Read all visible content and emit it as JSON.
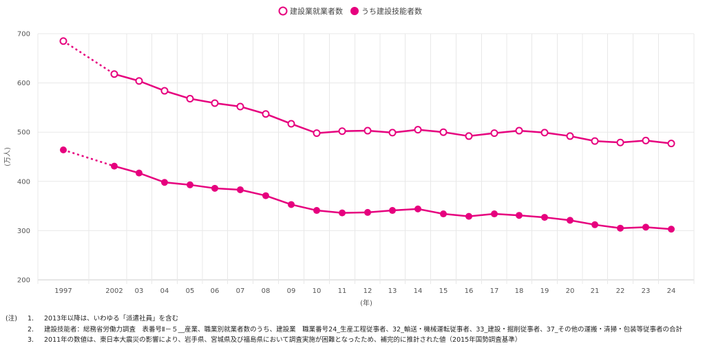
{
  "colors": {
    "series": "#e6007e",
    "grid": "#e8e8e8",
    "axis": "#cccccc"
  },
  "chart_data": {
    "type": "line",
    "title": "",
    "xlabel": "(年)",
    "ylabel": "(万人)",
    "ylim": [
      200,
      700
    ],
    "yticks": [
      700,
      600,
      500,
      400,
      300,
      200
    ],
    "grid": true,
    "legend_position": "top-center",
    "x": [
      "1997",
      "2002",
      "03",
      "04",
      "05",
      "06",
      "07",
      "08",
      "09",
      "10",
      "11",
      "12",
      "13",
      "14",
      "15",
      "16",
      "17",
      "18",
      "19",
      "20",
      "21",
      "22",
      "23",
      "24"
    ],
    "series": [
      {
        "name": "建設業就業者数",
        "marker": "hollow-circle",
        "values": [
          685,
          618,
          604,
          584,
          568,
          559,
          552,
          537,
          517,
          498,
          502,
          503,
          499,
          505,
          500,
          492,
          498,
          503,
          499,
          492,
          482,
          479,
          483,
          477
        ]
      },
      {
        "name": "うち建設技能者数",
        "marker": "filled-circle",
        "values": [
          464,
          431,
          417,
          398,
          393,
          386,
          383,
          371,
          353,
          341,
          336,
          337,
          341,
          344,
          334,
          329,
          334,
          331,
          327,
          321,
          312,
          305,
          307,
          303
        ]
      }
    ]
  },
  "notes": {
    "lead": "(注)",
    "items": [
      {
        "num": "1.",
        "text": "2013年以降は、いわゆる「派遣社員」を含む"
      },
      {
        "num": "2.",
        "text": "建設技能者：総務省労働力調査　表番号Ⅱ－５__産業、職業別就業者数のうち、建設業　職業番号24_生産工程従事者、32_輸送・機械運転従事者、33_建設・掘削従事者、37_その他の運搬・清掃・包装等従事者の合計"
      },
      {
        "num": "3.",
        "text": "2011年の数値は、東日本大震災の影響により、岩手県、宮城県及び福島県において調査実施が困難となったため、補完的に推計された値（2015年国勢調査基準）"
      }
    ]
  }
}
